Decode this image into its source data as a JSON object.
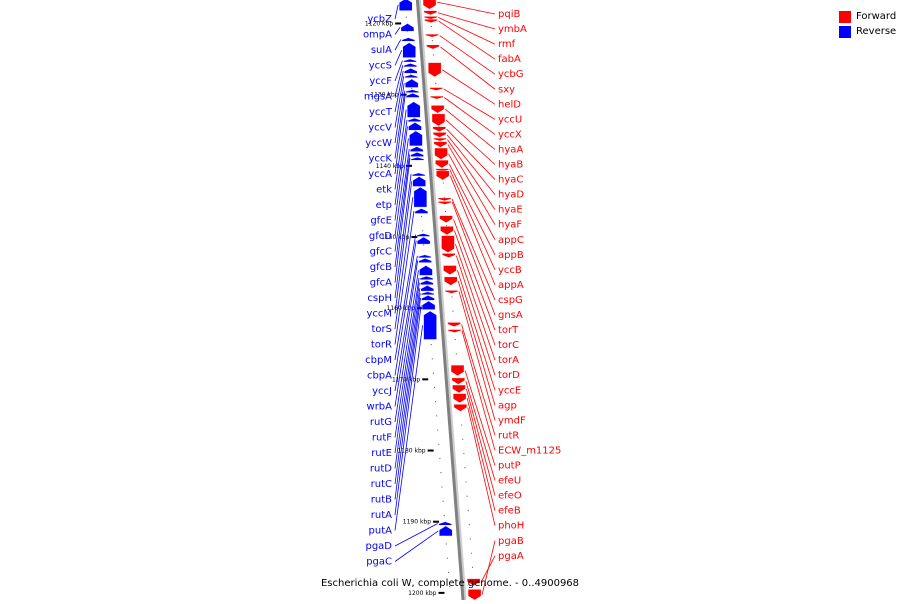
{
  "title": "Escherichia coli W, complete genome. - 0..4900968",
  "legend": [
    {
      "label": "Forward",
      "color": "#ff0000"
    },
    {
      "label": "Reverse",
      "color": "#0000ff"
    }
  ],
  "colors": {
    "forward": "#ff0000",
    "reverse": "#0000ff",
    "backbone": "#808080"
  },
  "genome": {
    "start_kbp": 1116,
    "end_kbp": 1201
  },
  "ticks": [
    {
      "kbp": 1120,
      "label": "1120 kbp"
    },
    {
      "kbp": 1130,
      "label": "1130 kbp"
    },
    {
      "kbp": 1140,
      "label": "1140 kbp"
    },
    {
      "kbp": 1150,
      "label": "1150 kbp"
    },
    {
      "kbp": 1160,
      "label": "1160 kbp"
    },
    {
      "kbp": 1170,
      "label": "1170 kbp"
    },
    {
      "kbp": 1180,
      "label": "1180 kbp"
    },
    {
      "kbp": 1190,
      "label": "1190 kbp"
    },
    {
      "kbp": 1200,
      "label": "1200 kbp"
    }
  ],
  "forward_genes": [
    {
      "name": "pqiB",
      "start": 1116.0,
      "end": 1118.0
    },
    {
      "name": "ymbA",
      "start": 1118.2,
      "end": 1118.8
    },
    {
      "name": "rmf",
      "start": 1119.0,
      "end": 1119.3
    },
    {
      "name": "fabA",
      "start": 1119.4,
      "end": 1119.9
    },
    {
      "name": "ycbG",
      "start": 1121.5,
      "end": 1121.9
    },
    {
      "name": "sxy",
      "start": 1123.0,
      "end": 1123.6
    },
    {
      "name": "helD",
      "start": 1125.5,
      "end": 1127.5
    },
    {
      "name": "yccU",
      "start": 1129.0,
      "end": 1129.4
    },
    {
      "name": "yccX",
      "start": 1130.2,
      "end": 1130.6
    },
    {
      "name": "hyaA",
      "start": 1131.5,
      "end": 1132.6
    },
    {
      "name": "hyaB",
      "start": 1132.7,
      "end": 1134.4
    },
    {
      "name": "hyaC",
      "start": 1134.5,
      "end": 1135.2
    },
    {
      "name": "hyaD",
      "start": 1135.3,
      "end": 1136.0
    },
    {
      "name": "hyaE",
      "start": 1136.1,
      "end": 1136.5
    },
    {
      "name": "hyaF",
      "start": 1136.6,
      "end": 1137.4
    },
    {
      "name": "appC",
      "start": 1137.5,
      "end": 1139.1
    },
    {
      "name": "appB",
      "start": 1139.2,
      "end": 1140.3
    },
    {
      "name": "yccB",
      "start": 1140.4,
      "end": 1140.6
    },
    {
      "name": "appA",
      "start": 1140.7,
      "end": 1142.0
    },
    {
      "name": "cspG",
      "start": 1144.5,
      "end": 1144.8
    },
    {
      "name": "gnsA",
      "start": 1145.0,
      "end": 1145.2
    },
    {
      "name": "torT",
      "start": 1147.0,
      "end": 1148.0
    },
    {
      "name": "torC",
      "start": 1148.5,
      "end": 1149.7
    },
    {
      "name": "torA",
      "start": 1149.8,
      "end": 1152.2
    },
    {
      "name": "torD",
      "start": 1152.3,
      "end": 1152.9
    },
    {
      "name": "yccE",
      "start": 1154.0,
      "end": 1155.3
    },
    {
      "name": "agp",
      "start": 1155.6,
      "end": 1156.8
    },
    {
      "name": "ymdF",
      "start": 1157.5,
      "end": 1157.8
    },
    {
      "name": "rutR",
      "start": 1162.0,
      "end": 1162.6
    },
    {
      "name": "ECW_m1125",
      "start": 1163.0,
      "end": 1163.3
    },
    {
      "name": "putP",
      "start": 1168.0,
      "end": 1169.5
    },
    {
      "name": "efeU",
      "start": 1169.8,
      "end": 1170.7
    },
    {
      "name": "efeO",
      "start": 1170.8,
      "end": 1171.9
    },
    {
      "name": "efeB",
      "start": 1172.0,
      "end": 1173.3
    },
    {
      "name": "phoH",
      "start": 1173.5,
      "end": 1174.5
    },
    {
      "name": "pgaB",
      "start": 1199.5,
      "end": 1201.0
    },
    {
      "name": "pgaA",
      "start": 1198.0,
      "end": 1199.0
    }
  ],
  "reverse_genes": [
    {
      "name": "ycbZ",
      "start": 1116.5,
      "end": 1118.2
    },
    {
      "name": "ompA",
      "start": 1120.0,
      "end": 1121.1
    },
    {
      "name": "sulA",
      "start": 1122.0,
      "end": 1122.5
    },
    {
      "name": "yccS",
      "start": 1122.7,
      "end": 1124.8
    },
    {
      "name": "yccF",
      "start": 1125.0,
      "end": 1125.4
    },
    {
      "name": "mgsA",
      "start": 1125.6,
      "end": 1126.1
    },
    {
      "name": "yccT",
      "start": 1126.3,
      "end": 1127.0
    },
    {
      "name": "yccV",
      "start": 1127.2,
      "end": 1127.6
    },
    {
      "name": "yccW",
      "start": 1127.8,
      "end": 1129.0
    },
    {
      "name": "yccK",
      "start": 1129.3,
      "end": 1129.6
    },
    {
      "name": "yccA",
      "start": 1129.8,
      "end": 1130.4
    },
    {
      "name": "etk",
      "start": 1131.0,
      "end": 1133.2
    },
    {
      "name": "etp",
      "start": 1133.3,
      "end": 1133.8
    },
    {
      "name": "gfcE",
      "start": 1133.9,
      "end": 1135.0
    },
    {
      "name": "gfcD",
      "start": 1135.1,
      "end": 1137.2
    },
    {
      "name": "gfcC",
      "start": 1137.3,
      "end": 1138.0
    },
    {
      "name": "gfcB",
      "start": 1138.1,
      "end": 1138.7
    },
    {
      "name": "gfcA",
      "start": 1138.8,
      "end": 1139.1
    },
    {
      "name": "cspH",
      "start": 1141.0,
      "end": 1141.3
    },
    {
      "name": "yccM",
      "start": 1141.5,
      "end": 1142.9
    },
    {
      "name": "torS",
      "start": 1143.0,
      "end": 1145.8
    },
    {
      "name": "torR",
      "start": 1146.0,
      "end": 1146.7
    },
    {
      "name": "cbpM",
      "start": 1149.5,
      "end": 1149.8
    },
    {
      "name": "cbpA",
      "start": 1150.0,
      "end": 1151.0
    },
    {
      "name": "yccJ",
      "start": 1152.5,
      "end": 1152.8
    },
    {
      "name": "wrbA",
      "start": 1153.0,
      "end": 1153.6
    },
    {
      "name": "rutG",
      "start": 1154.0,
      "end": 1155.4
    },
    {
      "name": "rutF",
      "start": 1155.5,
      "end": 1156.0
    },
    {
      "name": "rutE",
      "start": 1156.1,
      "end": 1156.7
    },
    {
      "name": "rutD",
      "start": 1156.8,
      "end": 1157.6
    },
    {
      "name": "rutC",
      "start": 1157.7,
      "end": 1158.1
    },
    {
      "name": "rutB",
      "start": 1158.2,
      "end": 1158.9
    },
    {
      "name": "rutA",
      "start": 1159.0,
      "end": 1160.2
    },
    {
      "name": "putA",
      "start": 1160.4,
      "end": 1164.4
    },
    {
      "name": "pgaD",
      "start": 1190.0,
      "end": 1190.5
    },
    {
      "name": "pgaC",
      "start": 1190.6,
      "end": 1192.0
    }
  ],
  "forward_labels_x": 498,
  "reverse_labels_x": 392
}
